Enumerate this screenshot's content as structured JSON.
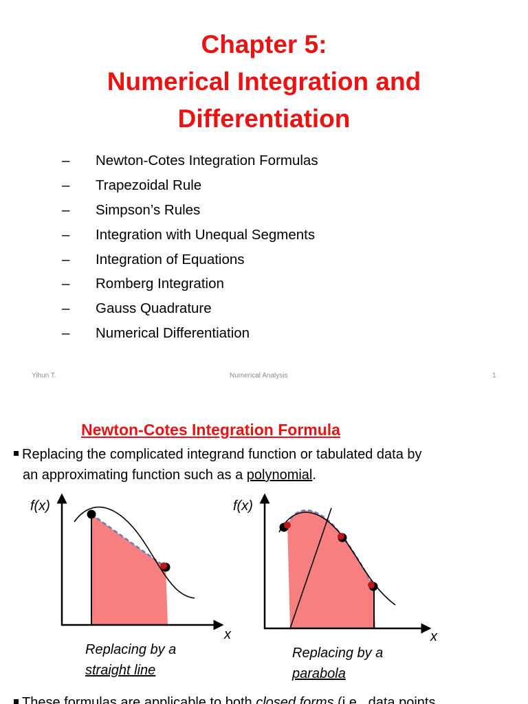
{
  "slide1": {
    "title_lines": [
      "Chapter 5:",
      "Numerical Integration and",
      "Differentiation"
    ],
    "dash": "–",
    "items": [
      "Newton-Cotes Integration Formulas",
      "Trapezoidal  Rule",
      "Simpson’s Rules",
      "Integration with Unequal Segments",
      "Integration of Equations",
      "Romberg Integration",
      "Gauss Quadrature",
      "Numerical Differentiation"
    ],
    "footer": {
      "author": "Yihun T.",
      "course": "Numerical Analysis",
      "page": "1"
    }
  },
  "slide2": {
    "title": "Newton-Cotes Integration Formula",
    "para1_line1": "Replacing the complicated integrand function or tabulated data by",
    "para1_line2_prefix": "an approximating function such as a ",
    "para1_line2_link": "polynomial",
    "para1_line2_suffix": ".",
    "left_figure": {
      "y_label": "f(x)",
      "x_label": "x",
      "caption_line1": "Replacing by a",
      "caption_line2": "straight line"
    },
    "right_figure": {
      "y_label": "f(x)",
      "x_label": "x",
      "caption_line1": "Replacing by a",
      "caption_line2": "parabola"
    },
    "para2_prefix": "These formulas are applicable to both ",
    "para2_italic": "closed forms",
    "para2_suffix": " (i.e., data points",
    "colors": {
      "title": "#ee1111",
      "fill": "#f87f7f",
      "dash": "#5b7fc6",
      "point_red": "#c0161b"
    }
  }
}
